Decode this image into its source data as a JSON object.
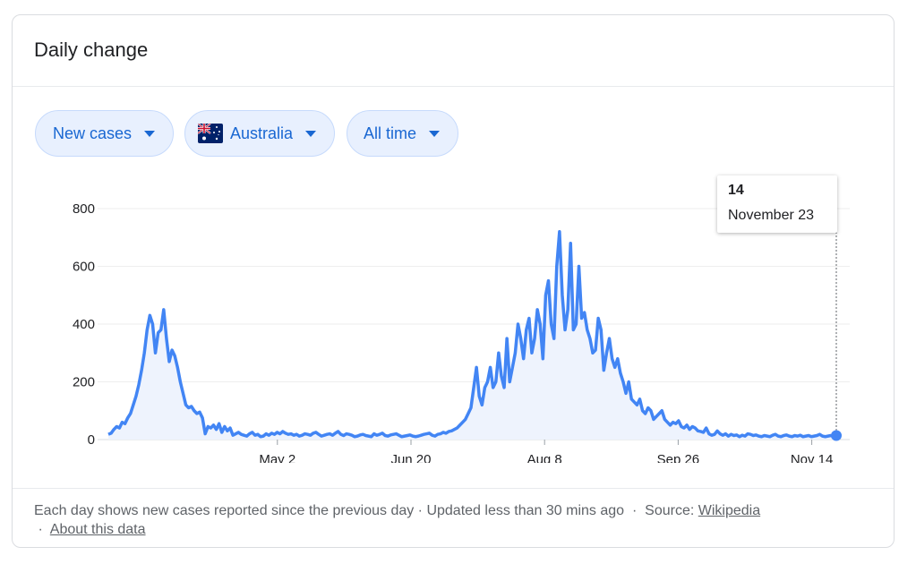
{
  "card": {
    "title": "Daily change"
  },
  "filters": {
    "metric": "New cases",
    "region": "Australia",
    "range": "All time"
  },
  "tooltip": {
    "value": "14",
    "date": "November 23"
  },
  "footer": {
    "text": "Each day shows new cases reported since the previous day · Updated less than 30 mins ago",
    "source_prefix": "Source:",
    "source_link": "Wikipedia",
    "about_link": "About this data"
  },
  "colors": {
    "line": "#4285f4",
    "fill": "#e8f0fe",
    "chip_text": "#1967d2"
  },
  "icons": {
    "region_flag": "australia-flag-icon",
    "dropdown": "caret-down-icon"
  },
  "chart_data": {
    "type": "area",
    "title": "",
    "xlabel": "",
    "ylabel": "",
    "ylim": [
      0,
      800
    ],
    "yticks": [
      0,
      200,
      400,
      600,
      800
    ],
    "xticks": [
      "May 2",
      "Jun 20",
      "Aug 8",
      "Sep 26",
      "Nov 14"
    ],
    "x_start": "2020-03-01",
    "x_end": "2020-11-23",
    "grid": true,
    "series": [
      {
        "values": [
          18,
          22,
          35,
          45,
          40,
          60,
          55,
          75,
          90,
          120,
          150,
          190,
          240,
          300,
          380,
          430,
          400,
          300,
          370,
          380,
          450,
          350,
          270,
          310,
          290,
          250,
          200,
          160,
          120,
          110,
          115,
          100,
          90,
          95,
          75,
          20,
          45,
          40,
          50,
          35,
          55,
          25,
          45,
          30,
          40,
          15,
          20,
          25,
          18,
          15,
          12,
          20,
          25,
          15,
          18,
          10,
          12,
          20,
          15,
          22,
          18,
          25,
          20,
          28,
          22,
          18,
          20,
          15,
          18,
          12,
          15,
          20,
          18,
          15,
          22,
          25,
          18,
          12,
          15,
          18,
          20,
          15,
          22,
          28,
          18,
          14,
          20,
          18,
          15,
          10,
          12,
          16,
          18,
          14,
          12,
          10,
          20,
          15,
          18,
          22,
          14,
          12,
          16,
          18,
          20,
          15,
          10,
          12,
          14,
          16,
          12,
          10,
          12,
          15,
          18,
          20,
          22,
          15,
          12,
          18,
          20,
          25,
          22,
          28,
          30,
          35,
          40,
          50,
          60,
          70,
          90,
          110,
          180,
          250,
          150,
          120,
          180,
          200,
          250,
          180,
          200,
          300,
          220,
          180,
          350,
          200,
          250,
          300,
          400,
          350,
          280,
          380,
          420,
          300,
          350,
          450,
          400,
          280,
          500,
          550,
          400,
          350,
          600,
          720,
          500,
          380,
          450,
          680,
          380,
          400,
          600,
          420,
          440,
          380,
          350,
          300,
          310,
          420,
          380,
          240,
          300,
          350,
          280,
          250,
          280,
          230,
          200,
          160,
          200,
          140,
          130,
          120,
          140,
          100,
          90,
          110,
          100,
          70,
          80,
          90,
          100,
          70,
          60,
          50,
          60,
          55,
          65,
          45,
          40,
          50,
          35,
          45,
          40,
          30,
          28,
          25,
          40,
          20,
          15,
          18,
          30,
          20,
          15,
          20,
          12,
          18,
          14,
          16,
          10,
          15,
          12,
          20,
          18,
          14,
          16,
          12,
          10,
          14,
          12,
          10,
          15,
          18,
          12,
          10,
          14,
          16,
          12,
          10,
          14,
          12,
          15,
          10,
          12,
          14,
          10,
          12,
          14,
          18,
          12,
          10,
          12,
          14,
          10,
          14
        ]
      }
    ]
  }
}
